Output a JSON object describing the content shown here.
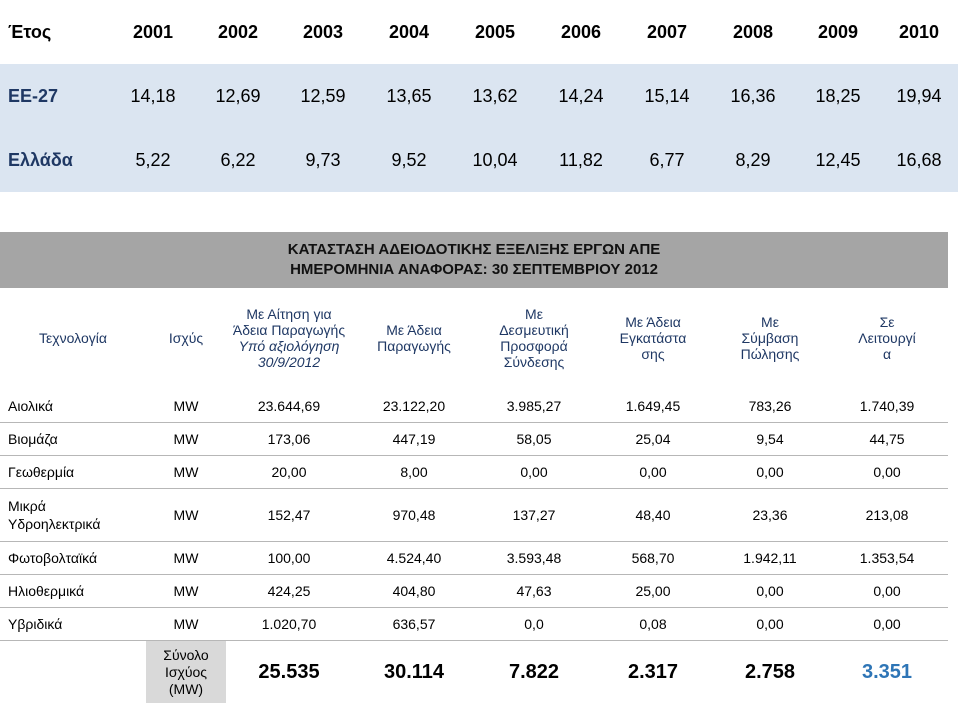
{
  "top_table": {
    "header": [
      "Έτος",
      "2001",
      "2002",
      "2003",
      "2004",
      "2005",
      "2006",
      "2007",
      "2008",
      "2009",
      "2010"
    ],
    "rows": [
      {
        "label": "ΕΕ-27",
        "values": [
          "14,18",
          "12,69",
          "12,59",
          "13,65",
          "13,62",
          "14,24",
          "15,14",
          "16,36",
          "18,25",
          "19,94"
        ]
      },
      {
        "label": "Ελλάδα",
        "values": [
          "5,22",
          "6,22",
          "9,73",
          "9,52",
          "10,04",
          "11,82",
          "6,77",
          "8,29",
          "12,45",
          "16,68"
        ]
      }
    ]
  },
  "status_table": {
    "title_line1": "ΚΑΤΑΣΤΑΣΗ ΑΔΕΙΟΔΟΤΙΚΗΣ ΕΞΕΛΙΞΗΣ ΕΡΓΩΝ ΑΠΕ",
    "title_line2": "ΗΜΕΡΟΜΗΝΙΑ ΑΝΑΦΟΡΑΣ: 30 ΣΕΠΤΕΜΒΡΙΟΥ 2012",
    "headers": {
      "technology": "Τεχνολογία",
      "capacity": "Ισχύς",
      "application_line1": "Με Αίτηση για",
      "application_line2": "Άδεια Παραγωγής",
      "application_line3": "Υπό αξιολόγηση",
      "application_line4": "30/9/2012",
      "production_line1": "Με Άδεια",
      "production_line2": "Παραγωγής",
      "binding_line1": "Με",
      "binding_line2": "Δεσμευτική",
      "binding_line3": "Προσφορά",
      "binding_line4": "Σύνδεσης",
      "install_line1": "Με Άδεια",
      "install_line2": "Εγκατάστα",
      "install_line3": "σης",
      "sale_line1": "Με",
      "sale_line2": "Σύμβαση",
      "sale_line3": "Πώλησης",
      "operation_line1": "Σε",
      "operation_line2": "Λειτουργί",
      "operation_line3": "α"
    },
    "rows": [
      {
        "tech": "Αιολικά",
        "unit": "MW",
        "values": [
          "23.644,69",
          "23.122,20",
          "3.985,27",
          "1.649,45",
          "783,26",
          "1.740,39"
        ]
      },
      {
        "tech": "Βιομάζα",
        "unit": "MW",
        "values": [
          "173,06",
          "447,19",
          "58,05",
          "25,04",
          "9,54",
          "44,75"
        ]
      },
      {
        "tech": "Γεωθερμία",
        "unit": "MW",
        "values": [
          "20,00",
          "8,00",
          "0,00",
          "0,00",
          "0,00",
          "0,00"
        ]
      },
      {
        "tech_line1": "Μικρά",
        "tech_line2": "Υδροηλεκτρικά",
        "unit": "MW",
        "values": [
          "152,47",
          "970,48",
          "137,27",
          "48,40",
          "23,36",
          "213,08"
        ]
      },
      {
        "tech": "Φωτοβολταϊκά",
        "unit": "MW",
        "values": [
          "100,00",
          "4.524,40",
          "3.593,48",
          "568,70",
          "1.942,11",
          "1.353,54"
        ]
      },
      {
        "tech": "Ηλιοθερμικά",
        "unit": "MW",
        "values": [
          "424,25",
          "404,80",
          "47,63",
          "25,00",
          "0,00",
          "0,00"
        ]
      },
      {
        "tech": "Υβριδικά",
        "unit": "MW",
        "values": [
          "1.020,70",
          "636,57",
          "0,0",
          "0,08",
          "0,00",
          "0,00"
        ]
      }
    ],
    "total": {
      "label_line1": "Σύνολο",
      "label_line2": "Ισχύος",
      "label_line3": "(MW)",
      "values": [
        "25.535",
        "30.114",
        "7.822",
        "2.317",
        "2.758",
        "3.351"
      ]
    }
  }
}
